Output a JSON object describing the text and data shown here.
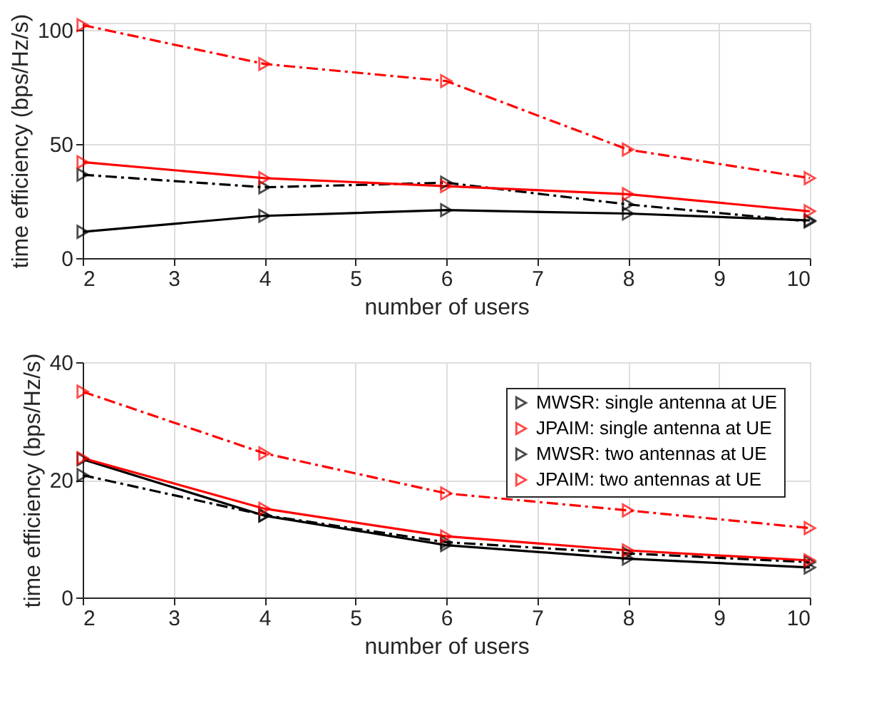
{
  "chart_data": [
    {
      "type": "line",
      "xlabel": "number of users",
      "ylabel": "time efficiency (bps/Hz/s)",
      "x": [
        2,
        4,
        6,
        8,
        10
      ],
      "xlim": [
        2,
        10
      ],
      "xticks": [
        2,
        3,
        4,
        5,
        6,
        7,
        8,
        9,
        10
      ],
      "ylim": [
        0,
        103
      ],
      "yticks": [
        0,
        50,
        100
      ],
      "grid": true,
      "marker": "triangle",
      "legend": false,
      "series": [
        {
          "color": "#000000",
          "line_style": "dashed",
          "values": [
            36.5,
            31,
            33,
            23.5,
            16
          ]
        },
        {
          "color": "#ff0000",
          "line_style": "dashed",
          "values": [
            102,
            85,
            77.5,
            47.5,
            35
          ]
        },
        {
          "color": "#000000",
          "line_style": "solid",
          "values": [
            11.5,
            18.5,
            21,
            19.5,
            16.5
          ]
        },
        {
          "color": "#ff0000",
          "line_style": "solid",
          "values": [
            42,
            35,
            31.5,
            28,
            20.5
          ]
        }
      ]
    },
    {
      "type": "line",
      "xlabel": "number of users",
      "ylabel": "time efficiency (bps/Hz/s)",
      "x": [
        2,
        4,
        6,
        8,
        10
      ],
      "xlim": [
        2,
        10
      ],
      "xticks": [
        2,
        3,
        4,
        5,
        6,
        7,
        8,
        9,
        10
      ],
      "ylim": [
        0,
        40
      ],
      "yticks": [
        0,
        20,
        40
      ],
      "grid": true,
      "marker": "triangle",
      "legend": "top right",
      "series": [
        {
          "name": "MWSR: single antenna at UE",
          "color": "#000000",
          "line_style": "dashed",
          "values": [
            20.8,
            14,
            9.4,
            7.5,
            6
          ]
        },
        {
          "name": "JPAIM: single antenna at UE",
          "color": "#ff0000",
          "line_style": "dashed",
          "values": [
            35,
            24.5,
            17.7,
            14.8,
            11.8
          ]
        },
        {
          "name": "MWSR: two antennas at UE",
          "color": "#000000",
          "line_style": "solid",
          "values": [
            23.5,
            13.9,
            8.9,
            6.6,
            5.1
          ]
        },
        {
          "name": "JPAIM: two antennas at UE",
          "color": "#ff0000",
          "line_style": "solid",
          "values": [
            23.7,
            15.1,
            10.4,
            8,
            6.3
          ]
        }
      ]
    }
  ]
}
